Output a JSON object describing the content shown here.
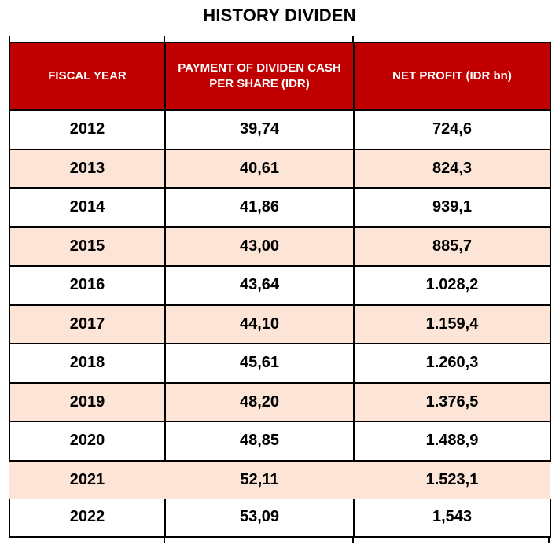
{
  "title": "HISTORY DIVIDEN",
  "colors": {
    "header_bg": "#C00000",
    "header_text": "#FFFFFF",
    "row_alt_bg": "#FCE4D6",
    "border": "#000000",
    "text": "#000000",
    "page_bg": "#FFFFFF"
  },
  "chart_data": {
    "type": "table",
    "title": "HISTORY DIVIDEN",
    "columns": [
      "FISCAL YEAR",
      "PAYMENT OF DIVIDEN CASH\nPER SHARE (IDR)",
      "NET PROFIT (IDR bn)"
    ],
    "rows": [
      [
        "2012",
        "39,74",
        "724,6"
      ],
      [
        "2013",
        "40,61",
        "824,3"
      ],
      [
        "2014",
        "41,86",
        "939,1"
      ],
      [
        "2015",
        "43,00",
        "885,7"
      ],
      [
        "2016",
        "43,64",
        "1.028,2"
      ],
      [
        "2017",
        "44,10",
        "1.159,4"
      ],
      [
        "2018",
        "45,61",
        "1.260,3"
      ],
      [
        "2019",
        "48,20",
        "1.376,5"
      ],
      [
        "2020",
        "48,85",
        "1.488,9"
      ],
      [
        "2021",
        "52,11",
        "1.523,1"
      ],
      [
        "2022",
        "53,09",
        "1,543"
      ]
    ],
    "layout": {
      "zebra_striping": true,
      "alt_rows_start": "2013",
      "grid": true,
      "borderless_fill_row": "2021"
    }
  }
}
